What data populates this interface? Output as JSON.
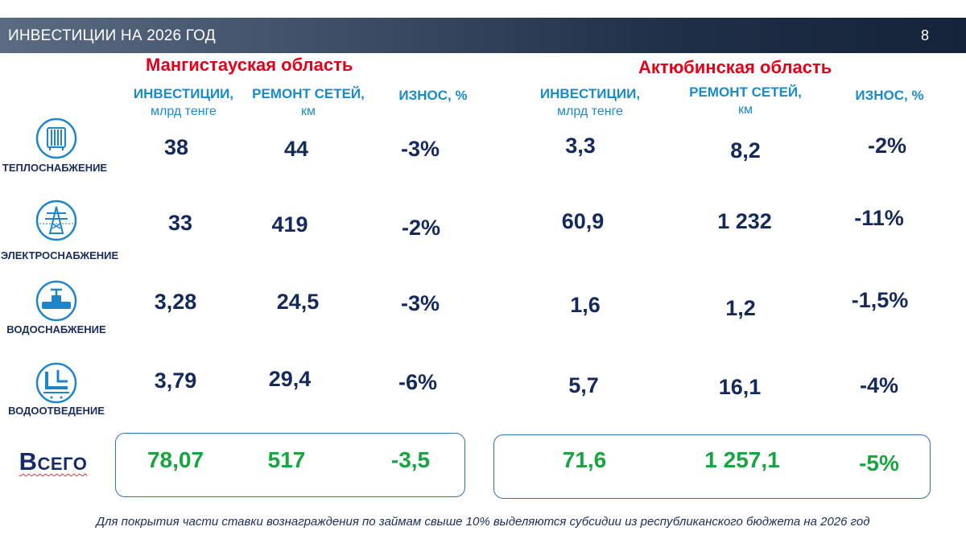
{
  "header": {
    "title": "ИНВЕСТИЦИИ НА 2026 ГОД",
    "page_number": "8"
  },
  "regions": [
    {
      "title": "Мангистауская область",
      "columns": [
        {
          "main": "ИНВЕСТИЦИИ,",
          "sub": "млрд тенге"
        },
        {
          "main": "РЕМОНТ СЕТЕЙ,",
          "sub": "км"
        },
        {
          "main": "ИЗНОС, %",
          "sub": ""
        }
      ],
      "rows": [
        [
          "38",
          "44",
          "-3%"
        ],
        [
          "33",
          "419",
          "-2%"
        ],
        [
          "3,28",
          "24,5",
          "-3%"
        ],
        [
          "3,79",
          "29,4",
          "-6%"
        ]
      ],
      "total": [
        "78,07",
        "517",
        "-3,5"
      ]
    },
    {
      "title": "Актюбинская область",
      "columns": [
        {
          "main": "ИНВЕСТИЦИИ,",
          "sub": "млрд тенге"
        },
        {
          "main": "РЕМОНТ СЕТЕЙ,",
          "sub": "км"
        },
        {
          "main": "ИЗНОС, %",
          "sub": ""
        }
      ],
      "rows": [
        [
          "3,3",
          "8,2",
          "-2%"
        ],
        [
          "60,9",
          "1 232",
          "-11%"
        ],
        [
          "1,6",
          "1,2",
          "-1,5%"
        ],
        [
          "5,7",
          "16,1",
          "-4%"
        ]
      ],
      "total": [
        "71,6",
        "1 257,1",
        "-5%"
      ]
    }
  ],
  "categories": [
    {
      "label": "ТЕПЛОСНАБЖЕНИЕ",
      "icon": "radiator-icon"
    },
    {
      "label": "ЭЛЕКТРОСНАБЖЕНИЕ",
      "icon": "power-tower-icon"
    },
    {
      "label": "ВОДОСНАБЖЕНИЕ",
      "icon": "water-valve-icon"
    },
    {
      "label": "ВОДООТВЕДЕНИЕ",
      "icon": "drain-pipe-icon"
    }
  ],
  "total_label": "Всего",
  "footer": "Для покрытия части ставки вознаграждения по займам свыше 10% выделяются субсидии из республиканского бюджета на 2026 год",
  "colors": {
    "region_title": "#e3001b",
    "column_header": "#1a8bc9",
    "values": "#152a5c",
    "totals": "#18a53f"
  }
}
